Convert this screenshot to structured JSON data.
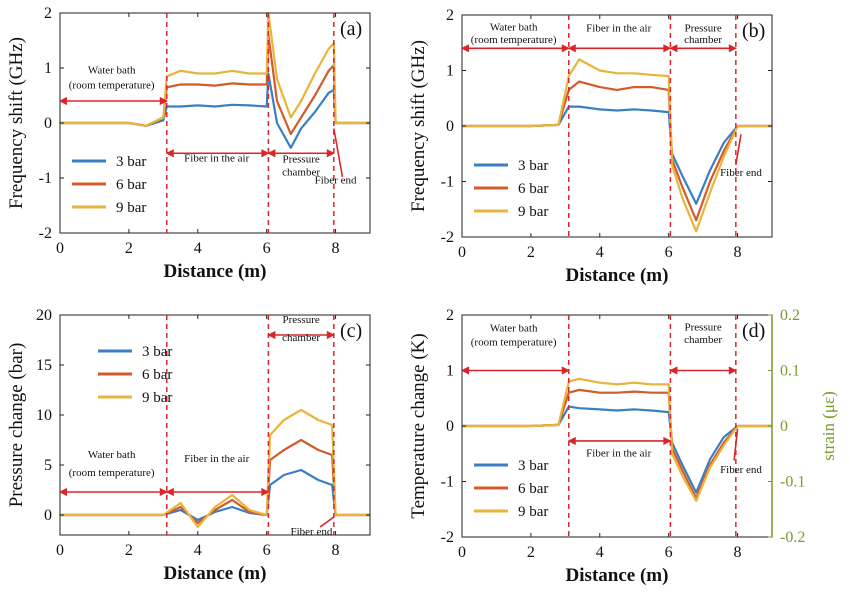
{
  "colors": {
    "s3": "#3a7fc4",
    "s6": "#d35a2a",
    "s9": "#e8b43a",
    "annot": "#d9262b",
    "strain": "#7a9a2a"
  },
  "chart_data": [
    {
      "panel": "(a)",
      "type": "line",
      "xlabel": "Distance (m)",
      "ylabel": "Frequency shift (GHz)",
      "xlim": [
        0,
        9
      ],
      "ylim": [
        -2,
        2
      ],
      "xticks": [
        0,
        2,
        4,
        6,
        8
      ],
      "yticks": [
        -2,
        -1,
        0,
        1,
        2
      ],
      "legend": {
        "position": "lower-left",
        "entries": [
          "3 bar",
          "6 bar",
          "9 bar"
        ]
      },
      "series": [
        {
          "name": "3 bar",
          "color": "s3",
          "x": [
            0,
            1,
            2,
            2.5,
            3,
            3.1,
            3.5,
            4,
            4.5,
            5,
            5.5,
            6,
            6.05,
            6.3,
            6.7,
            7,
            7.4,
            7.8,
            7.95,
            8,
            9
          ],
          "y": [
            0,
            0,
            0,
            -0.05,
            0.05,
            0.3,
            0.3,
            0.32,
            0.3,
            0.33,
            0.32,
            0.3,
            0.9,
            0,
            -0.45,
            -0.1,
            0.2,
            0.55,
            0.6,
            0,
            0
          ]
        },
        {
          "name": "6 bar",
          "color": "s6",
          "x": [
            0,
            1,
            2,
            2.5,
            3,
            3.1,
            3.5,
            4,
            4.5,
            5,
            5.5,
            6,
            6.05,
            6.3,
            6.7,
            7,
            7.4,
            7.8,
            7.95,
            8,
            9
          ],
          "y": [
            0,
            0,
            0,
            -0.05,
            0.1,
            0.65,
            0.7,
            0.7,
            0.68,
            0.72,
            0.7,
            0.7,
            1.6,
            0.4,
            -0.2,
            0.1,
            0.5,
            0.95,
            1.05,
            0,
            0
          ]
        },
        {
          "name": "9 bar",
          "color": "s9",
          "x": [
            0,
            1,
            2,
            2.5,
            3,
            3.1,
            3.5,
            4,
            4.5,
            5,
            5.5,
            6,
            6.05,
            6.3,
            6.7,
            7,
            7.4,
            7.8,
            7.95,
            8,
            9
          ],
          "y": [
            0,
            0,
            0,
            -0.05,
            0.1,
            0.85,
            0.95,
            0.9,
            0.9,
            0.95,
            0.9,
            0.9,
            2.0,
            0.8,
            0.1,
            0.4,
            0.9,
            1.35,
            1.45,
            0,
            0
          ]
        }
      ],
      "annotations": {
        "water": [
          "Water bath",
          "(room temperature)"
        ],
        "air": [
          "Fiber in the air"
        ],
        "chamber": [
          "Pressure",
          "chamber"
        ],
        "end": "Fiber end"
      }
    },
    {
      "panel": "(b)",
      "type": "line",
      "xlabel": "Distance (m)",
      "ylabel": "Frequency shift (GHz)",
      "xlim": [
        0,
        9
      ],
      "ylim": [
        -2,
        2
      ],
      "xticks": [
        0,
        2,
        4,
        6,
        8
      ],
      "yticks": [
        -2,
        -1,
        0,
        1,
        2
      ],
      "legend": {
        "position": "lower-left",
        "entries": [
          "3 bar",
          "6 bar",
          "9 bar"
        ]
      },
      "series": [
        {
          "name": "3 bar",
          "color": "s3",
          "x": [
            0,
            1,
            2,
            2.8,
            3.1,
            3.4,
            4,
            4.5,
            5,
            5.5,
            6,
            6.1,
            6.4,
            6.8,
            7.2,
            7.6,
            8,
            9
          ],
          "y": [
            0,
            0,
            0,
            0.02,
            0.35,
            0.35,
            0.3,
            0.28,
            0.3,
            0.28,
            0.25,
            -0.5,
            -0.9,
            -1.4,
            -0.8,
            -0.3,
            0,
            0
          ]
        },
        {
          "name": "6 bar",
          "color": "s6",
          "x": [
            0,
            1,
            2,
            2.8,
            3.1,
            3.4,
            4,
            4.5,
            5,
            5.5,
            6,
            6.1,
            6.4,
            6.8,
            7.2,
            7.6,
            8,
            9
          ],
          "y": [
            0,
            0,
            0,
            0.02,
            0.65,
            0.8,
            0.7,
            0.65,
            0.7,
            0.7,
            0.65,
            -0.6,
            -1.1,
            -1.7,
            -1.0,
            -0.45,
            0,
            0
          ]
        },
        {
          "name": "9 bar",
          "color": "s9",
          "x": [
            0,
            1,
            2,
            2.8,
            3.1,
            3.4,
            4,
            4.5,
            5,
            5.5,
            6,
            6.1,
            6.4,
            6.8,
            7.2,
            7.6,
            8,
            9
          ],
          "y": [
            0,
            0,
            0,
            0.02,
            0.9,
            1.2,
            1.0,
            0.95,
            0.95,
            0.92,
            0.9,
            -0.7,
            -1.3,
            -1.9,
            -1.2,
            -0.55,
            0,
            0
          ]
        }
      ],
      "annotations": {
        "water": [
          "Water bath",
          "(room temperature)"
        ],
        "air": [
          "Fiber in the air"
        ],
        "chamber": [
          "Pressure",
          "chamber"
        ],
        "end": "Fiber end"
      }
    },
    {
      "panel": "(c)",
      "type": "line",
      "xlabel": "Distance (m)",
      "ylabel": "Pressure change (bar)",
      "xlim": [
        0,
        9
      ],
      "ylim": [
        -2,
        20
      ],
      "xticks": [
        0,
        2,
        4,
        6,
        8
      ],
      "yticks": [
        0,
        5,
        10,
        15,
        20
      ],
      "legend": {
        "position": "upper-left",
        "entries": [
          "3 bar",
          "6 bar",
          "9 bar"
        ]
      },
      "series": [
        {
          "name": "3 bar",
          "color": "s3",
          "x": [
            0,
            1,
            2,
            3,
            3.5,
            4,
            4.5,
            5,
            5.5,
            6,
            6.1,
            6.5,
            7,
            7.5,
            7.9,
            8,
            9
          ],
          "y": [
            0,
            0,
            0,
            0,
            0.5,
            -0.5,
            0.3,
            0.8,
            0.2,
            0,
            3,
            4,
            4.5,
            3.5,
            3,
            0,
            0
          ]
        },
        {
          "name": "6 bar",
          "color": "s6",
          "x": [
            0,
            1,
            2,
            3,
            3.5,
            4,
            4.5,
            5,
            5.5,
            6,
            6.1,
            6.5,
            7,
            7.5,
            7.9,
            8,
            9
          ],
          "y": [
            0,
            0,
            0,
            0,
            0.8,
            -0.8,
            0.5,
            1.5,
            0.3,
            0,
            5.5,
            6.5,
            7.5,
            6.5,
            6,
            0,
            0
          ]
        },
        {
          "name": "9 bar",
          "color": "s9",
          "x": [
            0,
            1,
            2,
            3,
            3.5,
            4,
            4.5,
            5,
            5.5,
            6,
            6.1,
            6.5,
            7,
            7.5,
            7.9,
            8,
            9
          ],
          "y": [
            0,
            0,
            0,
            0,
            1.2,
            -1.2,
            0.8,
            2.0,
            0.5,
            0,
            8,
            9.5,
            10.5,
            9.5,
            9,
            0,
            0
          ]
        }
      ],
      "annotations": {
        "water": [
          "Water bath",
          "(room temperature)"
        ],
        "air": [
          "Fiber in the air"
        ],
        "chamber": [
          "Pressure",
          "chamber"
        ],
        "end": "Fiber end"
      }
    },
    {
      "panel": "(d)",
      "type": "line",
      "xlabel": "Distance (m)",
      "ylabel": "Temperature change (K)",
      "y2label": "strain (με)",
      "xlim": [
        0,
        9
      ],
      "ylim": [
        -2,
        2
      ],
      "y2lim": [
        -0.2,
        0.2
      ],
      "xticks": [
        0,
        2,
        4,
        6,
        8
      ],
      "yticks": [
        -2,
        -1,
        0,
        1,
        2
      ],
      "y2ticks": [
        -0.2,
        -0.1,
        0,
        0.1,
        0.2
      ],
      "legend": {
        "position": "lower-left",
        "entries": [
          "3 bar",
          "6 bar",
          "9 bar"
        ]
      },
      "series": [
        {
          "name": "3 bar",
          "color": "s3",
          "x": [
            0,
            1,
            2,
            2.8,
            3.1,
            3.4,
            4,
            4.5,
            5,
            5.5,
            6,
            6.1,
            6.4,
            6.8,
            7.2,
            7.6,
            8,
            9
          ],
          "y": [
            0,
            0,
            0,
            0.02,
            0.35,
            0.32,
            0.3,
            0.28,
            0.3,
            0.28,
            0.25,
            -0.3,
            -0.7,
            -1.2,
            -0.6,
            -0.2,
            0,
            0
          ]
        },
        {
          "name": "6 bar",
          "color": "s6",
          "x": [
            0,
            1,
            2,
            2.8,
            3.1,
            3.4,
            4,
            4.5,
            5,
            5.5,
            6,
            6.1,
            6.4,
            6.8,
            7.2,
            7.6,
            8,
            9
          ],
          "y": [
            0,
            0,
            0,
            0.02,
            0.6,
            0.65,
            0.6,
            0.6,
            0.62,
            0.6,
            0.6,
            -0.4,
            -0.8,
            -1.3,
            -0.7,
            -0.3,
            0,
            0
          ]
        },
        {
          "name": "9 bar",
          "color": "s9",
          "x": [
            0,
            1,
            2,
            2.8,
            3.1,
            3.4,
            4,
            4.5,
            5,
            5.5,
            6,
            6.1,
            6.4,
            6.8,
            7.2,
            7.6,
            8,
            9
          ],
          "y": [
            0,
            0,
            0,
            0.02,
            0.8,
            0.85,
            0.78,
            0.75,
            0.78,
            0.75,
            0.75,
            -0.5,
            -0.9,
            -1.35,
            -0.75,
            -0.35,
            0,
            0
          ]
        }
      ],
      "annotations": {
        "water": [
          "Water bath",
          "(room temperature)"
        ],
        "air": [
          "Fiber in the air"
        ],
        "chamber": [
          "Pressure",
          "chamber"
        ],
        "end": "Fiber end"
      }
    }
  ]
}
